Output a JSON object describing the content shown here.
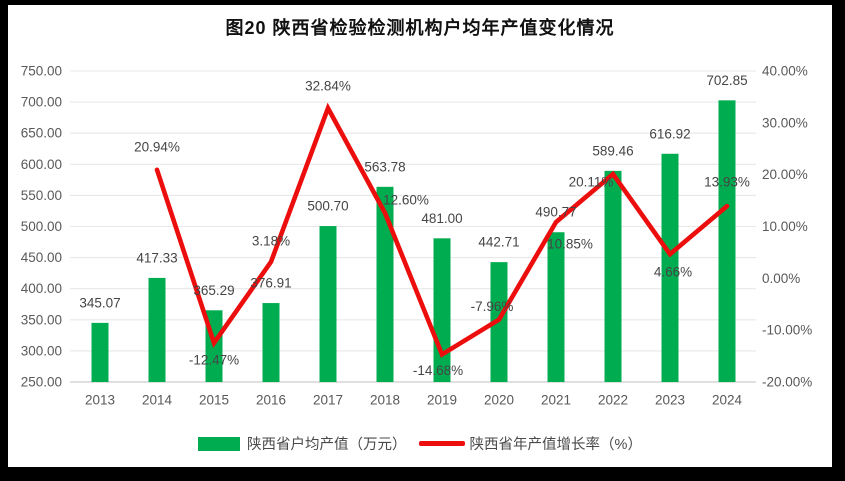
{
  "title": "图20  陕西省检验检测机构户均年产值变化情况",
  "colors": {
    "bar_green": "#00AC50",
    "line_red": "#EC0D0D",
    "gridline": "#E8E8E8",
    "axis_line": "#D6D6D6",
    "axis_text": "#595959",
    "data_label_text": "#454545",
    "title_text": "#111111",
    "page_bg": "#FFFFFF",
    "frame_bg": "#000000"
  },
  "chart_data": {
    "type": "bar",
    "subtype": "bar+line combo, dual axis",
    "title": "图20  陕西省检验检测机构户均年产值变化情况",
    "categories": [
      "2013",
      "2014",
      "2015",
      "2016",
      "2017",
      "2018",
      "2019",
      "2020",
      "2021",
      "2022",
      "2023",
      "2024"
    ],
    "series": [
      {
        "name": "陕西省户均产值（万元）",
        "type": "bar",
        "axis": "left",
        "color": "#00AC50",
        "values": [
          345.07,
          417.33,
          365.29,
          376.91,
          500.7,
          563.78,
          481.0,
          442.71,
          490.77,
          589.46,
          616.92,
          702.85
        ],
        "labels": [
          "345.07",
          "417.33",
          "365.29",
          "376.91",
          "500.70",
          "563.78",
          "481.00",
          "442.71",
          "490.77",
          "589.46",
          "616.92",
          "702.85"
        ]
      },
      {
        "name": "陕西省年产值增长率（%）",
        "type": "line",
        "axis": "right",
        "color": "#EC0D0D",
        "values": [
          null,
          20.94,
          -12.47,
          3.18,
          32.84,
          12.6,
          -14.68,
          -7.96,
          10.85,
          20.11,
          4.66,
          13.93
        ],
        "labels": [
          null,
          "20.94%",
          "-12.47%",
          "3.18%",
          "32.84%",
          "12.60%",
          "-14.68%",
          "-7.96%",
          "10.85%",
          "20.11%",
          "4.66%",
          "13.93%"
        ]
      }
    ],
    "left_axis": {
      "min": 250,
      "max": 750,
      "step": 50,
      "tick_labels": [
        "750.00",
        "700.00",
        "650.00",
        "600.00",
        "550.00",
        "500.00",
        "450.00",
        "400.00",
        "350.00",
        "300.00",
        "250.00"
      ]
    },
    "right_axis": {
      "min": -20,
      "max": 40,
      "step": 10,
      "tick_labels": [
        "40.00%",
        "30.00%",
        "20.00%",
        "10.00%",
        "0.00%",
        "-10.00%",
        "-20.00%"
      ]
    },
    "grid": true,
    "legend_position": "bottom"
  }
}
